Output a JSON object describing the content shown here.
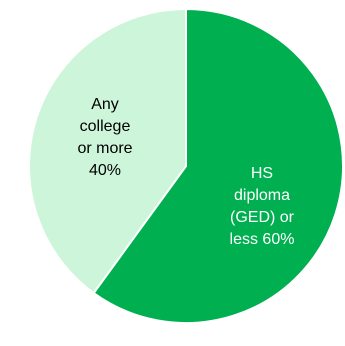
{
  "chart_data": {
    "type": "pie",
    "slices": [
      {
        "name": "HS diploma (GED) or less",
        "value": 60,
        "color": "#00b050",
        "label_lines": [
          "HS",
          "diploma",
          "(GED) or",
          "less 60%"
        ],
        "label_color": "#ffffff"
      },
      {
        "name": "Any college or more",
        "value": 40,
        "color": "#ccf5d9",
        "label_lines": [
          "Any",
          "college",
          "or more",
          "40%"
        ],
        "label_color": "#000000"
      }
    ],
    "start_angle_deg": 0,
    "direction": "clockwise",
    "legend": "none"
  }
}
